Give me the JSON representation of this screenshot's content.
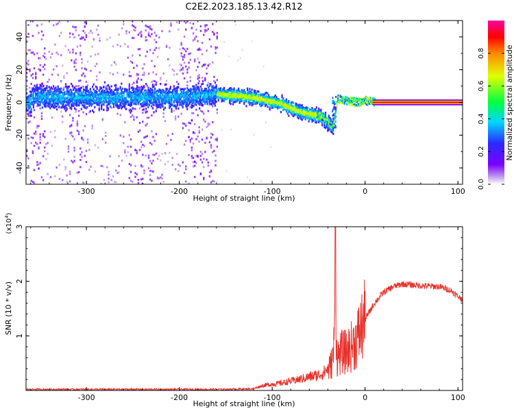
{
  "title": "C2E2.2023.185.13.42.R12",
  "chart_data": [
    {
      "type": "heatmap",
      "title": "C2E2.2023.185.13.42.R12",
      "xlabel": "Height of straight line (km)",
      "ylabel": "Frequency (Hz)",
      "xlim": [
        -365,
        105
      ],
      "ylim": [
        -50,
        50
      ],
      "x_ticks": [
        -300,
        -200,
        -100,
        0,
        100
      ],
      "y_ticks": [
        -40,
        -20,
        0,
        20,
        40
      ],
      "colorbar": {
        "label": "Normalized spectral amplitude",
        "range": [
          0,
          1
        ],
        "ticks": [
          0.0,
          0.2,
          0.4,
          0.6,
          0.8
        ],
        "colormap": [
          "#ffffff",
          "#c8a8f0",
          "#7c00ff",
          "#2a2aff",
          "#00d8ff",
          "#00ff40",
          "#e0ff00",
          "#ff8800",
          "#ff0000",
          "#ff00a0"
        ]
      },
      "ridge": {
        "x": [
          -360,
          -300,
          -250,
          -200,
          -160,
          -120,
          -90,
          -70,
          -50,
          -35,
          -30,
          -10,
          0,
          10,
          105
        ],
        "y": [
          3,
          3,
          3,
          3,
          5,
          3,
          -1,
          -6,
          -8,
          -15,
          2,
          0,
          1,
          0,
          0
        ]
      }
    },
    {
      "type": "line",
      "xlabel": "Height of straight line (km)",
      "ylabel": "SNR (10 * v/v)",
      "y_scale_label": "(x10",
      "y_scale_exp": "4",
      "y_scale_close": ")",
      "xlim": [
        -365,
        105
      ],
      "ylim": [
        0,
        3
      ],
      "x_ticks": [
        -300,
        -200,
        -100,
        0,
        100
      ],
      "y_ticks": [
        1,
        2,
        3
      ],
      "color": "#e8302a",
      "series": [
        {
          "x": [
            -365,
            -300,
            -250,
            -200,
            -150,
            -120,
            -110,
            -100,
            -90,
            -80,
            -70,
            -60,
            -50,
            -45,
            -40,
            -35,
            -33,
            -32,
            -31,
            -30,
            -25,
            -20,
            -15,
            -10,
            0,
            10,
            20,
            30,
            40,
            60,
            80,
            90,
            95,
            100,
            105
          ],
          "values": [
            0.02,
            0.02,
            0.02,
            0.02,
            0.02,
            0.03,
            0.08,
            0.1,
            0.12,
            0.15,
            0.18,
            0.22,
            0.25,
            0.28,
            0.35,
            0.55,
            0.9,
            3.0,
            0.9,
            0.6,
            0.7,
            0.7,
            0.8,
            0.9,
            1.3,
            1.6,
            1.8,
            1.9,
            1.95,
            1.92,
            1.9,
            1.85,
            1.8,
            1.72,
            1.68
          ]
        }
      ]
    }
  ]
}
